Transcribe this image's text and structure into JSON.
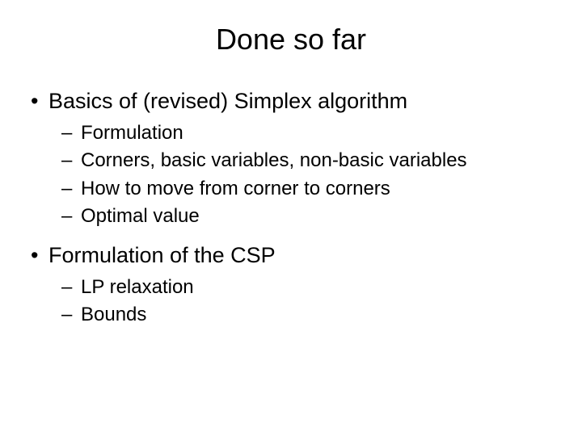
{
  "slide": {
    "title": "Done so far",
    "sections": [
      {
        "heading": "Basics of (revised) Simplex algorithm",
        "items": [
          "Formulation",
          "Corners, basic variables, non-basic variables",
          "How to move from corner to corners",
          "Optimal value"
        ]
      },
      {
        "heading": "Formulation of the CSP",
        "items": [
          "LP relaxation",
          "Bounds"
        ]
      }
    ]
  },
  "style": {
    "background_color": "#ffffff",
    "text_color": "#000000",
    "title_fontsize": 36,
    "bullet1_fontsize": 27,
    "bullet2_fontsize": 24,
    "font_family": "Arial"
  }
}
